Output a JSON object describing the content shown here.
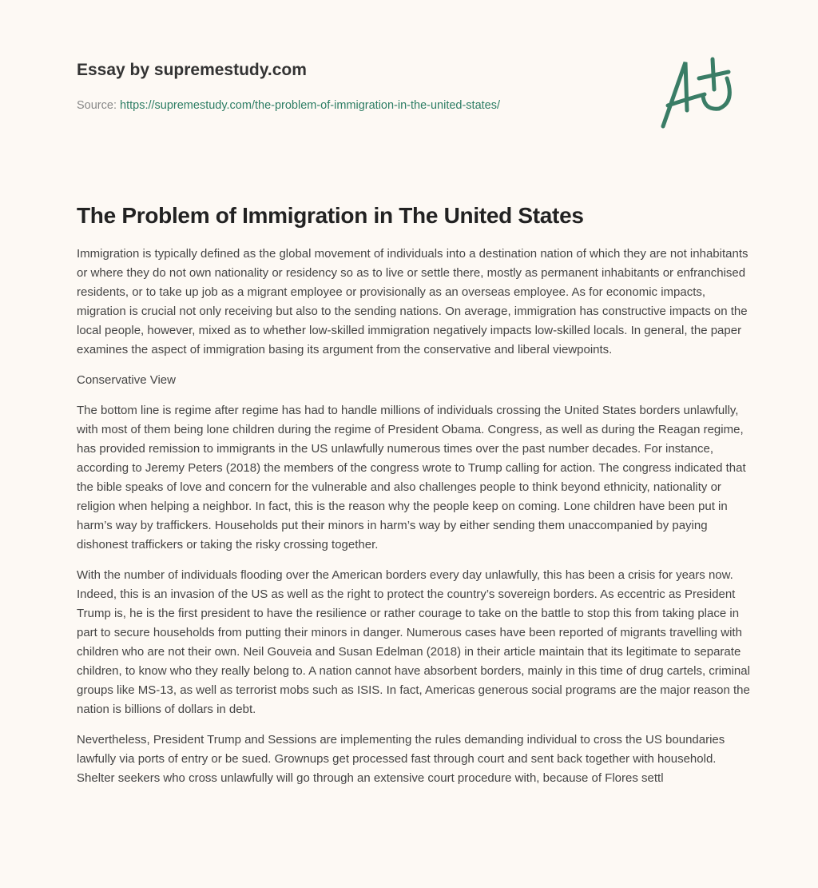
{
  "header": {
    "brand": "Essay by supremestudy.com",
    "source_label": "Source:",
    "source_url": "https://supremestudy.com/the-problem-of-immigration-in-the-united-states/",
    "logo_text": "A+",
    "accent": "#2d7d64"
  },
  "article": {
    "title": "The Problem of Immigration in The United States",
    "paragraphs": [
      "Immigration is typically defined as the global movement of individuals into a destination nation of which they are not inhabitants or where they do not own nationality or residency so as to live or settle there, mostly as permanent inhabitants or enfranchised residents, or to take up job as a migrant employee or provisionally as an overseas employee. As for economic impacts, migration is crucial not only receiving but also to the sending nations. On average, immigration has constructive impacts on the local people, however, mixed as to whether low-skilled immigration negatively impacts low-skilled locals. In general, the paper examines the aspect of immigration basing its argument from the conservative and liberal viewpoints.",
      "Conservative View",
      "The bottom line is regime after regime has had to handle millions of individuals crossing the United States borders unlawfully, with most of them being lone children during the regime of President Obama. Congress, as well as during the Reagan regime, has provided remission to immigrants in the US unlawfully numerous times over the past number decades. For instance, according to Jeremy Peters (2018) the members of the congress wrote to Trump calling for action. The congress indicated that the bible speaks of love and concern for the vulnerable and also challenges people to think beyond ethnicity, nationality or religion when helping a neighbor. In fact, this is the reason why the people keep on coming. Lone children have been put in harm’s way by traffickers. Households put their minors in harm’s way by either sending them unaccompanied by paying dishonest traffickers or taking the risky crossing together.",
      "With the number of individuals flooding over the American borders every day unlawfully, this has been a crisis for years now. Indeed, this is an invasion of the US as well as the right to protect the country’s sovereign borders. As eccentric as President Trump is, he is the first president to have the resilience or rather courage to take on the battle to stop this from taking place in part to secure households from putting their minors in danger. Numerous cases have been reported of migrants travelling with children who are not their own. Neil Gouveia and Susan Edelman (2018) in their article maintain that its legitimate to separate children, to know who they really belong to. A nation cannot have absorbent borders, mainly in this time of drug cartels, criminal groups like MS-13, as well as terrorist mobs such as ISIS. In fact, Americas generous social programs are the major reason the nation is billions of dollars in debt.",
      "Nevertheless, President Trump and Sessions are implementing the rules demanding individual to cross the US boundaries lawfully via ports of entry or be sued. Grownups get processed fast through court and sent back together with household. Shelter seekers who cross unlawfully will go through an extensive court procedure with, because of Flores settl"
    ]
  }
}
